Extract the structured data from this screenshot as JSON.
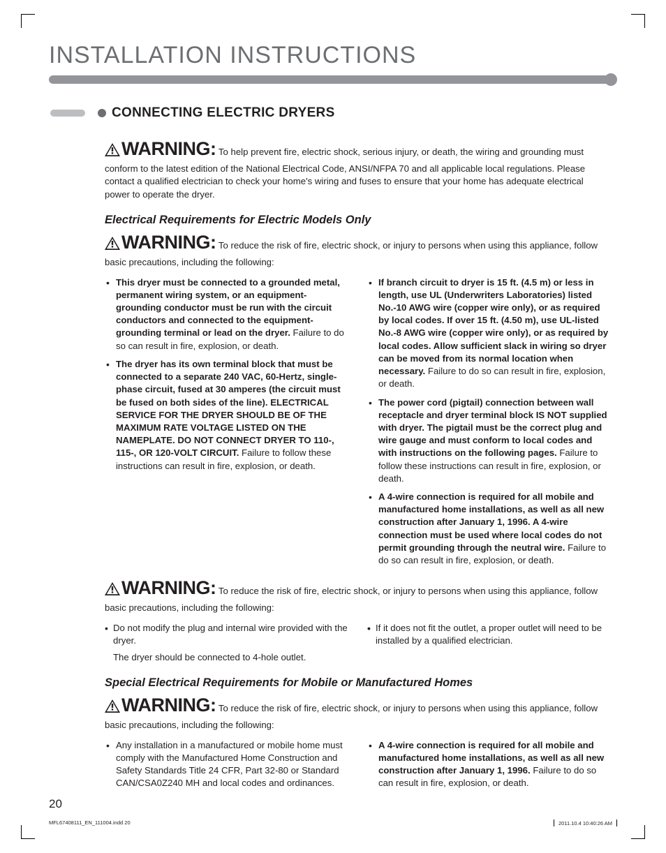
{
  "chapter_title": "INSTALLATION INSTRUCTIONS",
  "section_title": "CONNECTING ELECTRIC DRYERS",
  "colors": {
    "title_gray": "#6d6e71",
    "bar_gray": "#939598",
    "tab_gray": "#bcbec0",
    "text": "#231f20"
  },
  "warning_label": "WARNING:",
  "warn1_text": "To help prevent fire, electric shock, serious injury, or death, the wiring and grounding must conform to the latest edition of the National Electrical Code, ANSI/NFPA 70 and all applicable local regulations. Please contact a qualified electrician to check your home's wiring and fuses to ensure that your home has adequate electrical power to operate the dryer.",
  "sub1_title": "Electrical Requirements for Electric Models Only",
  "warn2_text": "To reduce the risk of fire, electric shock, or injury to persons  when using this appliance, follow basic precautions, including the following:",
  "list1": [
    {
      "bold": "This dryer must be connected to a grounded metal, permanent wiring system, or an equipment-grounding conductor must be run with the circuit conductors and connected to the equipment-grounding terminal or lead on the dryer.",
      "tail": " Failure to do so can result in fire, explosion, or death."
    },
    {
      "bold": "The dryer has its own terminal block that must be connected to a separate 240 VAC, 60-Hertz, single-phase circuit, fused at 30 amperes (the circuit must be fused on both sides of the line). ELECTRICAL SERVICE FOR THE DRYER SHOULD BE OF THE MAXIMUM RATE VOLTAGE LISTED ON THE NAMEPLATE. DO NOT CONNECT DRYER TO 110-, 115-, OR 120-VOLT CIRCUIT.",
      "tail": " Failure to follow these instructions can result in fire, explosion, or death."
    },
    {
      "bold": "If branch circuit to dryer is 15 ft. (4.5 m) or less in length, use UL (Underwriters Laboratories) listed No.-10 AWG wire (copper wire only), or as required by local codes. If over 15 ft. (4.50 m), use UL-listed No.-8 AWG wire (copper wire only), or as required by local codes. Allow sufficient slack in wiring so dryer can be moved from its normal location when necessary.",
      "tail": " Failure to do so can result in fire, explosion, or death."
    },
    {
      "bold": "The power cord (pigtail) connection between wall receptacle and dryer terminal block IS NOT supplied with dryer. The pigtail must be the correct plug and wire gauge and must conform to local codes and with instructions on the following pages.",
      "tail": " Failure to follow these instructions can result in fire, explosion, or death."
    },
    {
      "bold": "A 4-wire connection is required for all mobile and manufactured home installations, as well as all new construction after January 1, 1996. A 4-wire connection must be used where local codes do not permit grounding through the neutral wire.",
      "tail": " Failure to do so can result in fire, explosion, or death."
    }
  ],
  "warn3_text": "To reduce the risk of fire, electric shock, or injury to persons  when using this appliance, follow basic precautions, including the following:",
  "list2": [
    "Do not modify the plug and internal wire provided with the dryer.",
    "The dryer should be connected to 4-hole outlet.",
    "If it does not fit the outlet, a proper outlet will need to be installed by a qualified electrician."
  ],
  "sub2_title": "Special Electrical Requirements for Mobile or Manufactured Homes",
  "warn4_text": "To reduce the risk of fire, electric shock, or injury to persons  when using this appliance, follow basic precautions, including the following:",
  "list3": [
    {
      "bold": "",
      "tail": "Any installation in a manufactured or mobile home must comply with the Manufactured Home Construction and Safety Standards Title 24 CFR, Part 32-80 or Standard CAN/CSA0Z240 MH and local codes and ordinances."
    },
    {
      "bold": "A 4-wire connection is required for all mobile and manufactured home installations, as well as all new construction after January 1, 1996.",
      "tail": " Failure to do so can result in fire, explosion, or death."
    }
  ],
  "page_number": "20",
  "footer_file": "MFL67408111_EN_111004.indd   20",
  "footer_time": "2011.10.4   10:40:26 AM"
}
